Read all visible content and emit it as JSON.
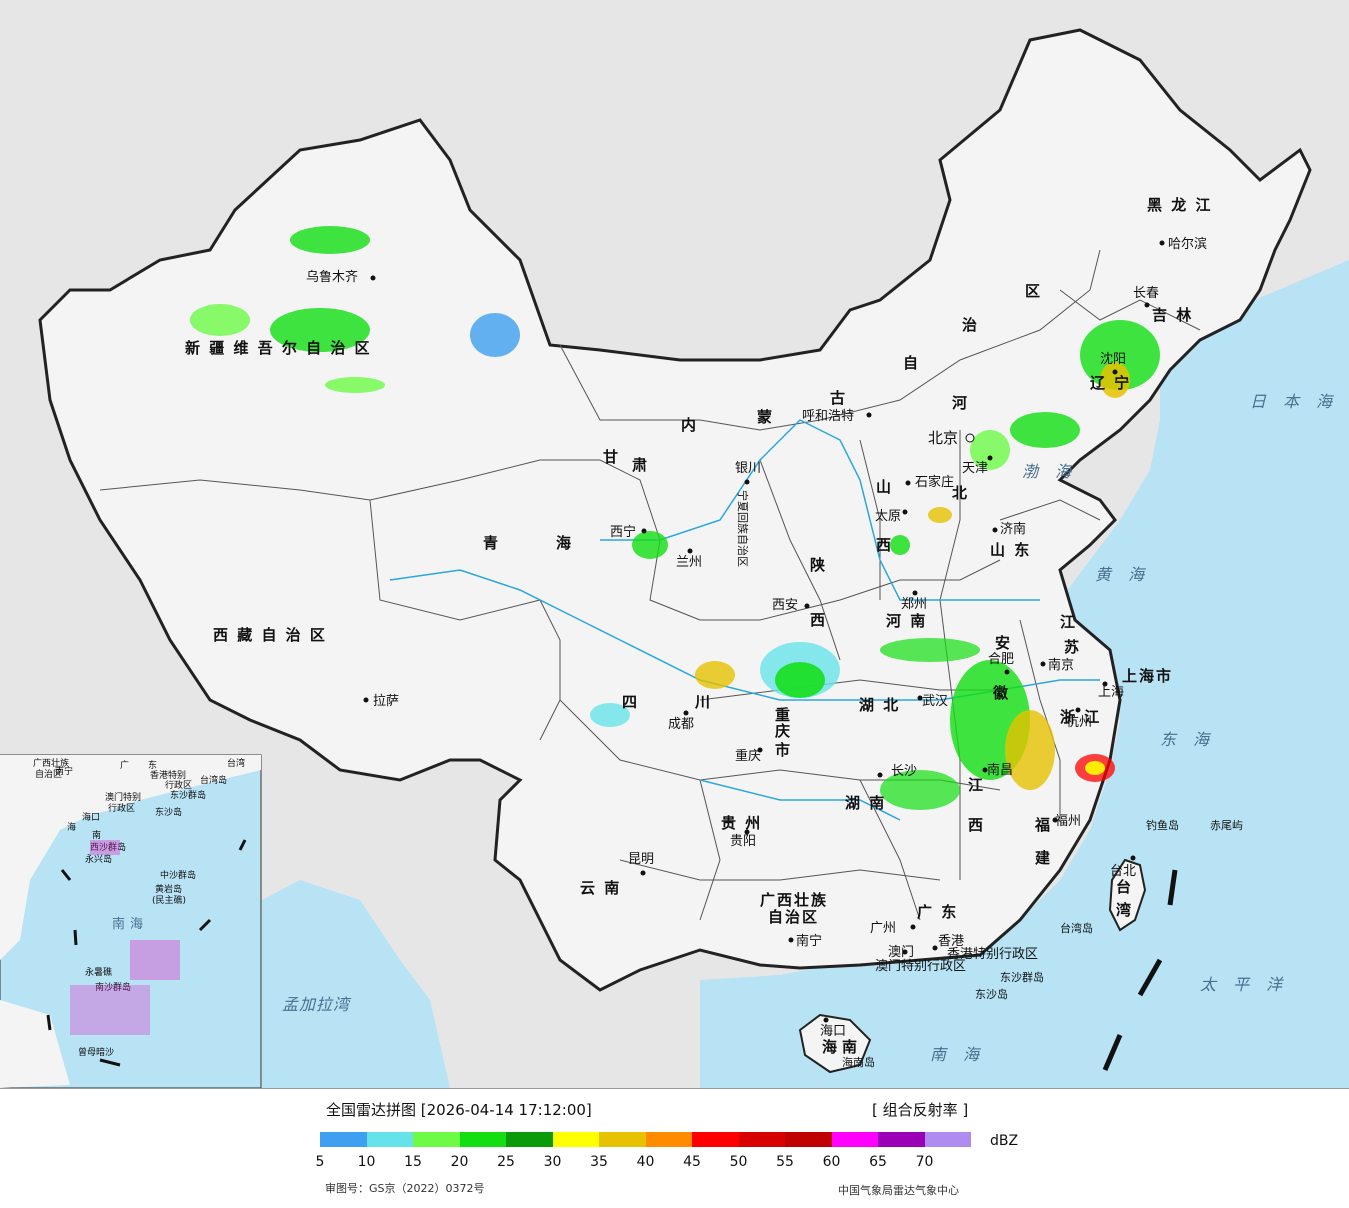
{
  "legend": {
    "title": "全国雷达拼图 [2026-04-14 17:12:00]",
    "product": "[ 组合反射率 ]",
    "unit": "dBZ",
    "approval": "审图号：GS京（2022）0372号",
    "org": "中国气象局雷达气象中心",
    "colors": [
      "#3f9ff0",
      "#66e3ea",
      "#6dfb46",
      "#12de11",
      "#0a9a0a",
      "#ffff00",
      "#e6c200",
      "#ff8c00",
      "#ff0000",
      "#d80000",
      "#c00000",
      "#ff00ff",
      "#9a00b5",
      "#b08cf0"
    ],
    "ticks": [
      "5",
      "10",
      "15",
      "20",
      "25",
      "30",
      "35",
      "40",
      "45",
      "50",
      "55",
      "60",
      "65",
      "70"
    ]
  },
  "provinces": [
    {
      "id": "xinjiang",
      "text": "新 疆 维 吾 尔 自 治 区"
    },
    {
      "id": "xizang",
      "text": "西 藏 自 治 区"
    },
    {
      "id": "qinghai1",
      "text": "青"
    },
    {
      "id": "qinghai2",
      "text": "海"
    },
    {
      "id": "gansu",
      "text": "甘"
    },
    {
      "id": "neimenggu1",
      "text": "内"
    },
    {
      "id": "neimenggu2",
      "text": "蒙"
    },
    {
      "id": "neimenggu3",
      "text": "古"
    },
    {
      "id": "neimenggu4",
      "text": "自"
    },
    {
      "id": "neimenggu5",
      "text": "治"
    },
    {
      "id": "neimenggu6",
      "text": "区"
    },
    {
      "id": "heilongjiang",
      "text": "黑 龙 江"
    },
    {
      "id": "jilin",
      "text": "吉 林"
    },
    {
      "id": "liaoning",
      "text": "辽 宁"
    },
    {
      "id": "hebei1",
      "text": "河"
    },
    {
      "id": "hebei2",
      "text": "北"
    },
    {
      "id": "shanxi1",
      "text": "山"
    },
    {
      "id": "shanxi2",
      "text": "西"
    },
    {
      "id": "shaanxi1",
      "text": "陕"
    },
    {
      "id": "shaanxi2",
      "text": "西"
    },
    {
      "id": "shandong",
      "text": "山 东"
    },
    {
      "id": "henan",
      "text": "河 南"
    },
    {
      "id": "jiangsu1",
      "text": "江"
    },
    {
      "id": "jiangsu2",
      "text": "苏"
    },
    {
      "id": "anhui1",
      "text": "安"
    },
    {
      "id": "anhui2",
      "text": "徽"
    },
    {
      "id": "shanghai",
      "text": "上海市"
    },
    {
      "id": "zhejiang",
      "text": "浙 江"
    },
    {
      "id": "hubei",
      "text": "湖 北"
    },
    {
      "id": "hunan",
      "text": "湖 南"
    },
    {
      "id": "jiangxi1",
      "text": "江"
    },
    {
      "id": "jiangxi2",
      "text": "西"
    },
    {
      "id": "fujian1",
      "text": "福"
    },
    {
      "id": "fujian2",
      "text": "建"
    },
    {
      "id": "sichuan1",
      "text": "四"
    },
    {
      "id": "sichuan2",
      "text": "川"
    },
    {
      "id": "chongqing1",
      "text": "重"
    },
    {
      "id": "chongqing2",
      "text": "庆"
    },
    {
      "id": "chongqing3",
      "text": "市"
    },
    {
      "id": "guizhou",
      "text": "贵 州"
    },
    {
      "id": "yunnan",
      "text": "云 南"
    },
    {
      "id": "guangxi1",
      "text": "广西壮族"
    },
    {
      "id": "guangxi2",
      "text": "自治区"
    },
    {
      "id": "guangdong",
      "text": "广 东"
    },
    {
      "id": "hainan1",
      "text": "海"
    },
    {
      "id": "hainan2",
      "text": "南"
    },
    {
      "id": "taiwan1",
      "text": "台"
    },
    {
      "id": "taiwan2",
      "text": "湾"
    },
    {
      "id": "ningxia",
      "text": "宁夏回族自治区"
    },
    {
      "id": "gansu2",
      "text": "肃"
    },
    {
      "id": "hk",
      "text": "香港特别行政区"
    },
    {
      "id": "macau",
      "text": "澳门特别行政区"
    }
  ],
  "cities": [
    {
      "id": "urumqi",
      "text": "乌鲁木齐"
    },
    {
      "id": "lhasa",
      "text": "拉萨"
    },
    {
      "id": "xining",
      "text": "西宁"
    },
    {
      "id": "lanzhou",
      "text": "兰州"
    },
    {
      "id": "yinchuan",
      "text": "银川"
    },
    {
      "id": "hohhot",
      "text": "呼和浩特"
    },
    {
      "id": "harbin",
      "text": "哈尔滨"
    },
    {
      "id": "changchun",
      "text": "长春"
    },
    {
      "id": "shenyang",
      "text": "沈阳"
    },
    {
      "id": "beijing",
      "text": "北京"
    },
    {
      "id": "tianjin",
      "text": "天津"
    },
    {
      "id": "shijiazhuang",
      "text": "石家庄"
    },
    {
      "id": "taiyuan",
      "text": "太原"
    },
    {
      "id": "jinan",
      "text": "济南"
    },
    {
      "id": "zhengzhou",
      "text": "郑州"
    },
    {
      "id": "xian",
      "text": "西安"
    },
    {
      "id": "nanjing",
      "text": "南京"
    },
    {
      "id": "hefei",
      "text": "合肥"
    },
    {
      "id": "shanghaic",
      "text": "上海"
    },
    {
      "id": "hangzhou",
      "text": "杭州"
    },
    {
      "id": "wuhan",
      "text": "武汉"
    },
    {
      "id": "changsha",
      "text": "长沙"
    },
    {
      "id": "nanchang",
      "text": "南昌"
    },
    {
      "id": "fuzhou",
      "text": "福州"
    },
    {
      "id": "chengdu",
      "text": "成都"
    },
    {
      "id": "chongqingc",
      "text": "重庆"
    },
    {
      "id": "guiyang",
      "text": "贵阳"
    },
    {
      "id": "kunming",
      "text": "昆明"
    },
    {
      "id": "nanning",
      "text": "南宁"
    },
    {
      "id": "guangzhou",
      "text": "广州"
    },
    {
      "id": "macauc",
      "text": "澳门"
    },
    {
      "id": "hongkong",
      "text": "香港"
    },
    {
      "id": "haikou",
      "text": "海口"
    },
    {
      "id": "taibei",
      "text": "台北"
    }
  ],
  "seas": [
    {
      "id": "japan",
      "text": "日 本 海"
    },
    {
      "id": "bohai",
      "text": "渤 海"
    },
    {
      "id": "yellow",
      "text": "黄 海"
    },
    {
      "id": "east",
      "text": "东 海"
    },
    {
      "id": "pacific",
      "text": "太 平 洋"
    },
    {
      "id": "south",
      "text": "南 海"
    },
    {
      "id": "bengal",
      "text": "孟加拉湾"
    }
  ],
  "islands": [
    {
      "id": "diaoyu",
      "text": "钓鱼岛"
    },
    {
      "id": "chiwei",
      "text": "赤尾屿"
    },
    {
      "id": "taiwandao",
      "text": "台湾岛"
    },
    {
      "id": "dongsha",
      "text": "东沙群岛"
    },
    {
      "id": "dongshadao",
      "text": "东沙岛"
    },
    {
      "id": "hainandao",
      "text": "海南岛"
    }
  ],
  "inset": {
    "labels": [
      "广西壮族",
      "自治区",
      "南宁",
      "广",
      "东",
      "台湾",
      "香港特别",
      "行政区",
      "澳门特别",
      "行政区",
      "台湾岛",
      "东沙群岛",
      "东沙岛",
      "海口",
      "海",
      "南",
      "西沙群岛",
      "永兴岛",
      "中沙群岛",
      "黄岩岛",
      "(民主礁)",
      "南",
      "海",
      "永暑礁",
      "南沙群岛",
      "曾母暗沙"
    ]
  }
}
